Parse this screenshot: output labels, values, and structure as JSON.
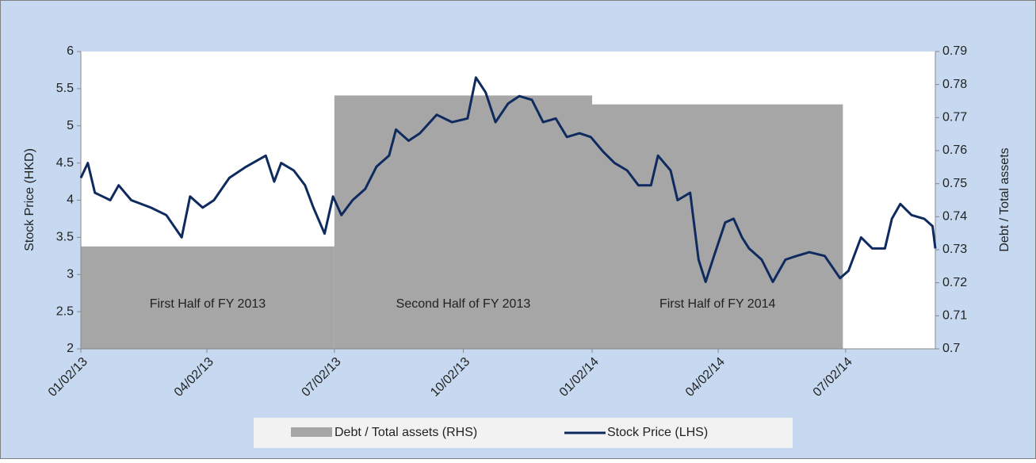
{
  "chart_data": {
    "type": "line",
    "ylabel": "Stock Price (HKD)",
    "y2label": "Debt / Total assets",
    "xlim": [
      "2013-01-02",
      "2014-09-04"
    ],
    "xticks": [
      {
        "value": "2013-01-02",
        "label": "01/02/13"
      },
      {
        "value": "2013-04-02",
        "label": "04/02/13"
      },
      {
        "value": "2013-07-02",
        "label": "07/02/13"
      },
      {
        "value": "2013-10-02",
        "label": "10/02/13"
      },
      {
        "value": "2014-01-02",
        "label": "01/02/14"
      },
      {
        "value": "2014-04-02",
        "label": "04/02/14"
      },
      {
        "value": "2014-07-02",
        "label": "07/02/14"
      }
    ],
    "ylim": [
      2,
      6
    ],
    "yticks": [
      2,
      2.5,
      3,
      3.5,
      4,
      4.5,
      5,
      5.5,
      6
    ],
    "y2lim": [
      0.7,
      0.79
    ],
    "y2ticks": [
      0.7,
      0.71,
      0.72,
      0.73,
      0.74,
      0.75,
      0.76,
      0.77,
      0.78,
      0.79
    ],
    "legend": "bottom",
    "series": [
      {
        "name": "Debt / Total assets (RHS)",
        "color": "#a6a6a6",
        "axis": "y2",
        "x": [
          "2013-01-02",
          "2013-07-02",
          "2014-01-02"
        ],
        "x_end": [
          "2013-07-02",
          "2014-01-02",
          "2014-06-30"
        ],
        "values": [
          0.731,
          0.7767,
          0.774
        ],
        "labels": [
          "First Half of FY 2013",
          "Second Half of FY 2013",
          "First Half of FY 2014"
        ]
      },
      {
        "name": "Stock Price (LHS)",
        "color": "#0f2a5f",
        "x": [
          "2013-01-02",
          "2013-01-07",
          "2013-01-12",
          "2013-01-23",
          "2013-01-29",
          "2013-02-07",
          "2013-02-21",
          "2013-03-04",
          "2013-03-15",
          "2013-03-21",
          "2013-03-30",
          "2013-04-07",
          "2013-04-18",
          "2013-04-30",
          "2013-05-14",
          "2013-05-20",
          "2013-05-25",
          "2013-06-03",
          "2013-06-11",
          "2013-06-17",
          "2013-06-25",
          "2013-07-01",
          "2013-07-07",
          "2013-07-15",
          "2013-07-24",
          "2013-08-01",
          "2013-08-10",
          "2013-08-15",
          "2013-08-24",
          "2013-09-01",
          "2013-09-13",
          "2013-09-24",
          "2013-10-05",
          "2013-10-11",
          "2013-10-18",
          "2013-10-25",
          "2013-11-03",
          "2013-11-11",
          "2013-11-20",
          "2013-11-28",
          "2013-12-07",
          "2013-12-15",
          "2013-12-24",
          "2014-01-01",
          "2014-01-10",
          "2014-01-18",
          "2014-01-27",
          "2014-02-04",
          "2014-02-13",
          "2014-02-18",
          "2014-02-27",
          "2014-03-04",
          "2014-03-13",
          "2014-03-19",
          "2014-03-24",
          "2014-03-30",
          "2014-04-07",
          "2014-04-13",
          "2014-04-19",
          "2014-04-24",
          "2014-05-03",
          "2014-05-11",
          "2014-05-20",
          "2014-05-28",
          "2014-06-06",
          "2014-06-17",
          "2014-06-28",
          "2014-07-04",
          "2014-07-13",
          "2014-07-21",
          "2014-07-30",
          "2014-08-04",
          "2014-08-10",
          "2014-08-18",
          "2014-08-27",
          "2014-09-02",
          "2014-09-04"
        ],
        "values": [
          4.3,
          4.5,
          4.1,
          4.0,
          4.2,
          4.0,
          3.9,
          3.8,
          3.5,
          4.05,
          3.9,
          4.0,
          4.3,
          4.45,
          4.6,
          4.25,
          4.5,
          4.4,
          4.2,
          3.9,
          3.55,
          4.05,
          3.8,
          4.0,
          4.15,
          4.45,
          4.6,
          4.95,
          4.8,
          4.9,
          5.15,
          5.05,
          5.1,
          5.65,
          5.45,
          5.05,
          5.3,
          5.4,
          5.35,
          5.05,
          5.1,
          4.85,
          4.9,
          4.85,
          4.65,
          4.5,
          4.4,
          4.2,
          4.2,
          4.6,
          4.4,
          4.0,
          4.1,
          3.2,
          2.9,
          3.25,
          3.7,
          3.75,
          3.5,
          3.35,
          3.2,
          2.9,
          3.2,
          3.25,
          3.3,
          3.25,
          2.95,
          3.05,
          3.5,
          3.35,
          3.35,
          3.75,
          3.95,
          3.8,
          3.75,
          3.65,
          3.35
        ]
      }
    ]
  }
}
